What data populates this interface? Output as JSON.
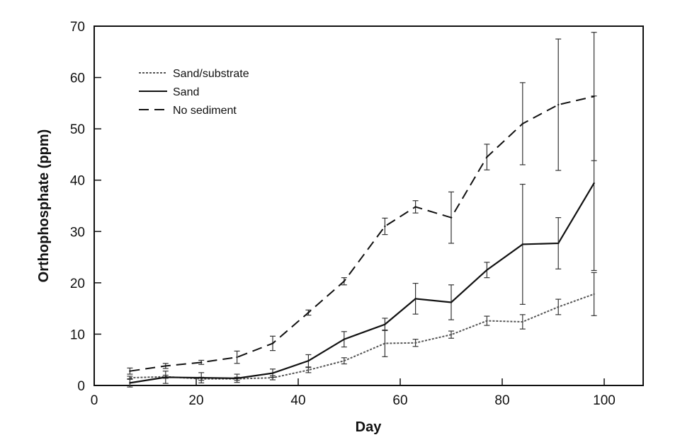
{
  "chart_data": {
    "type": "line",
    "xlabel": "Day",
    "ylabel": "Orthophosphate (ppm)",
    "xlim": [
      0,
      108
    ],
    "ylim": [
      0,
      70
    ],
    "xticks": [
      0,
      20,
      40,
      60,
      80,
      100
    ],
    "yticks": [
      0,
      10,
      20,
      30,
      40,
      50,
      60,
      70
    ],
    "grid": false,
    "legend": "top-left",
    "x": [
      7,
      14,
      21,
      28,
      35,
      42,
      49,
      57,
      63,
      70,
      77,
      84,
      91,
      98
    ],
    "series": [
      {
        "name": "Sand/substrate",
        "style": "dotted",
        "color": "#555555",
        "values": [
          1.5,
          1.7,
          1.3,
          1.3,
          1.5,
          3.0,
          4.8,
          8.2,
          8.3,
          9.9,
          12.6,
          12.4,
          15.3,
          17.8
        ],
        "errors": [
          0.3,
          0.3,
          0.3,
          0.3,
          0.4,
          0.5,
          0.6,
          2.6,
          0.7,
          0.7,
          0.9,
          1.4,
          1.5,
          4.2
        ]
      },
      {
        "name": "Sand",
        "style": "solid",
        "color": "#111111",
        "values": [
          0.5,
          1.6,
          1.5,
          1.4,
          2.4,
          4.8,
          9.0,
          11.9,
          16.9,
          16.2,
          22.5,
          27.5,
          27.7,
          39.4
        ],
        "errors": [
          0.8,
          1.2,
          1.0,
          0.8,
          0.8,
          1.2,
          1.5,
          1.2,
          3.0,
          3.4,
          1.5,
          11.7,
          5.0,
          17.0
        ]
      },
      {
        "name": "No sediment",
        "style": "dashed",
        "color": "#111111",
        "values": [
          2.8,
          3.8,
          4.5,
          5.5,
          8.2,
          14.2,
          20.3,
          31.0,
          34.8,
          32.7,
          44.5,
          51.0,
          54.7,
          56.3
        ],
        "errors": [
          0.6,
          0.5,
          0.4,
          1.2,
          1.4,
          0.5,
          0.7,
          1.6,
          1.2,
          5.0,
          2.5,
          8.0,
          12.8,
          12.5
        ]
      }
    ]
  }
}
